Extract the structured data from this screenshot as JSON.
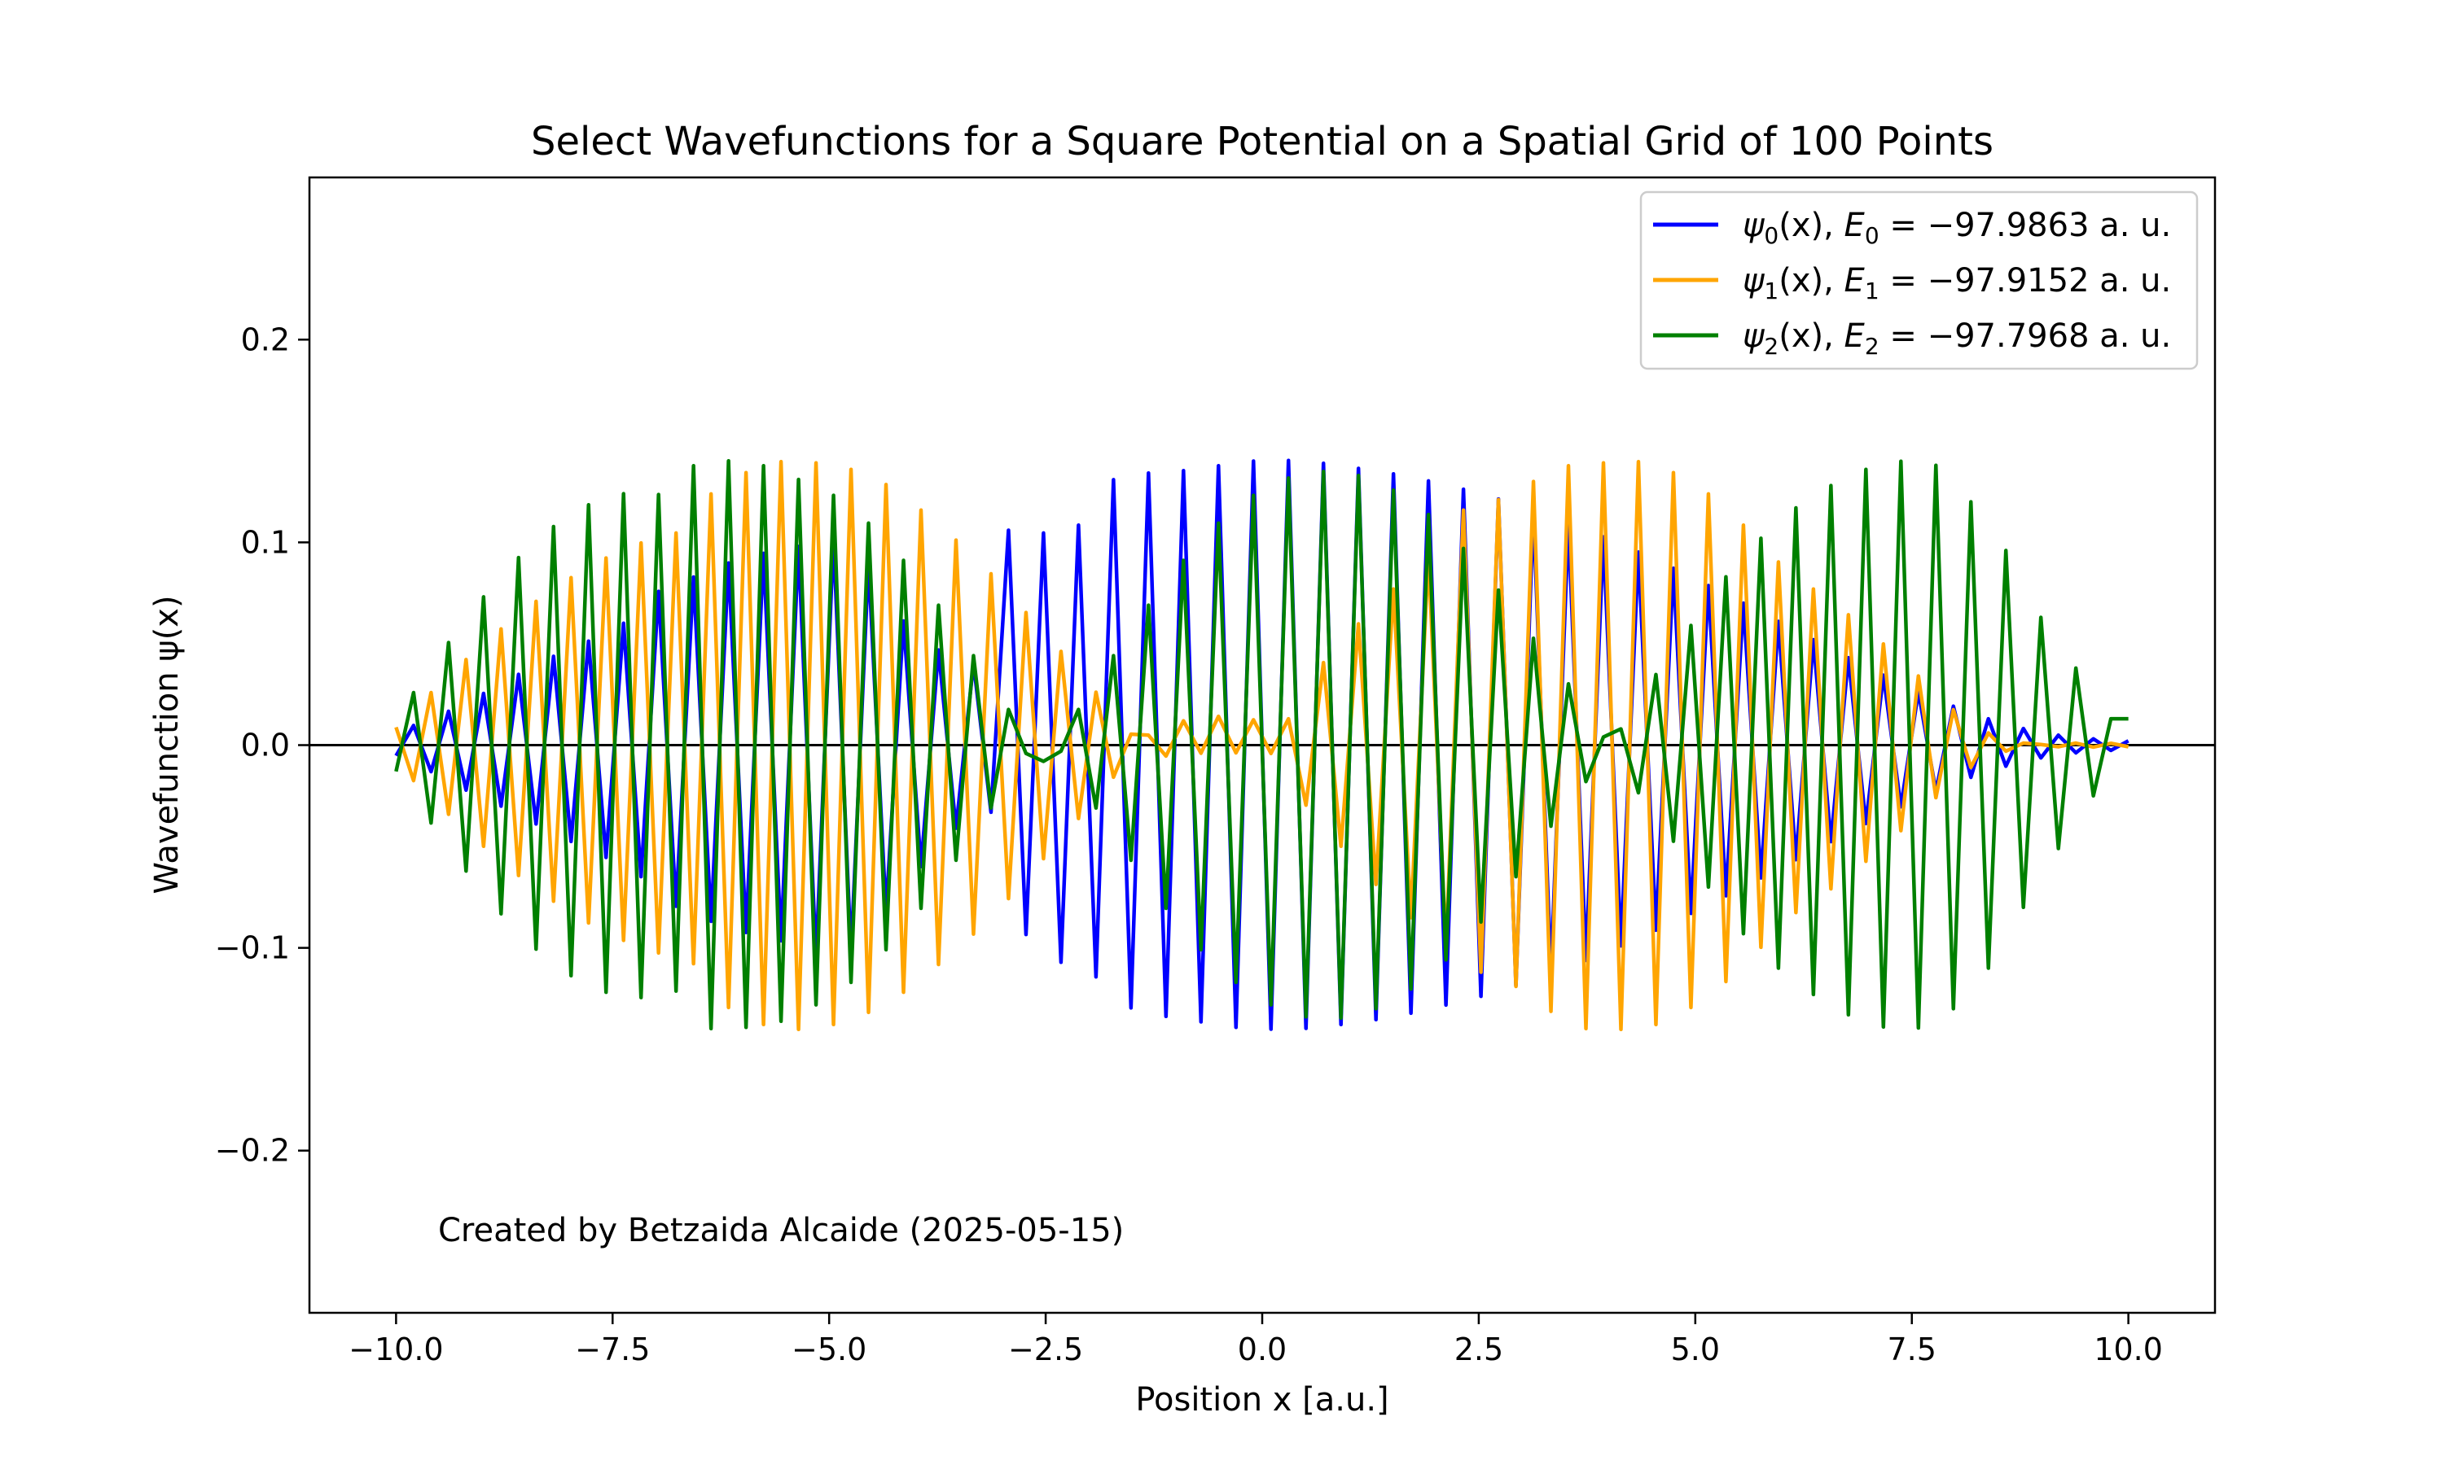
{
  "chart_data": {
    "type": "line",
    "title": "Select Wavefunctions for a Square Potential on a Spatial Grid of 100 Points",
    "xlabel": "Position x [a.u.]",
    "ylabel": "Wavefunction ψ(x)",
    "xlim": [
      -11.0,
      11.0
    ],
    "ylim": [
      -0.28,
      0.28
    ],
    "x_ticks": [
      -10.0,
      -7.5,
      -5.0,
      -2.5,
      0.0,
      2.5,
      5.0,
      7.5,
      10.0
    ],
    "x_tick_labels": [
      "−10.0",
      "−7.5",
      "−5.0",
      "−2.5",
      "0.0",
      "2.5",
      "5.0",
      "7.5",
      "10.0"
    ],
    "y_ticks": [
      -0.2,
      -0.1,
      0.0,
      0.1,
      0.2
    ],
    "y_tick_labels": [
      "−0.2",
      "−0.1",
      "0.0",
      "0.1",
      "0.2"
    ],
    "grid": false,
    "legend_position": "top-right",
    "annotation": "Created by Betzaida Alcaide (2025-05-15)",
    "x_range": [
      -10.0,
      10.0
    ],
    "n_points": 100,
    "series": [
      {
        "label": {
          "psi": "ψ",
          "sub": "0",
          "rest": "(x), ",
          "E": "E",
          "eq": " = −97.9863 a. u."
        },
        "color": "#0000ff",
        "values": [
          -0.0052,
          0.0097,
          -0.0131,
          0.0167,
          -0.0222,
          0.0255,
          -0.0301,
          0.0349,
          -0.0389,
          0.0438,
          -0.0475,
          0.0513,
          -0.0554,
          0.0601,
          -0.0649,
          0.0758,
          -0.0795,
          0.0829,
          -0.0869,
          0.0898,
          -0.0924,
          0.0946,
          -0.0965,
          0.098,
          -0.1054,
          0.1022,
          -0.1031,
          0.0901,
          -0.0823,
          0.0612,
          -0.0599,
          0.0469,
          -0.041,
          0.0405,
          -0.0331,
          0.106,
          -0.0934,
          0.1046,
          -0.1071,
          0.1085,
          -0.1143,
          0.1309,
          -0.1296,
          0.1342,
          -0.1338,
          0.1354,
          -0.1365,
          0.1378,
          -0.1392,
          0.1401,
          -0.1401,
          0.1404,
          -0.1397,
          0.139,
          -0.1378,
          0.1365,
          -0.1354,
          0.1338,
          -0.1322,
          0.1303,
          -0.1282,
          0.1262,
          -0.1239,
          0.1214,
          -0.1186,
          0.1158,
          -0.1128,
          0.1096,
          -0.1062,
          0.1027,
          -0.099,
          0.0952,
          -0.0913,
          0.0872,
          -0.083,
          0.0787,
          -0.0743,
          0.07,
          -0.0655,
          0.061,
          -0.0565,
          0.052,
          -0.0476,
          0.0431,
          -0.0387,
          0.0345,
          -0.0304,
          0.0264,
          -0.0227,
          0.0192,
          -0.0159,
          0.013,
          -0.0104,
          0.0082,
          -0.0063,
          0.0049,
          -0.0038,
          0.0031,
          -0.0026,
          0.0021
        ]
      },
      {
        "label": {
          "psi": "ψ",
          "sub": "1",
          "rest": "(x), ",
          "E": "E",
          "eq": " = −97.9152 a. u."
        },
        "color": "#ffa500",
        "values": [
          0.0088,
          -0.0175,
          0.0259,
          -0.0341,
          0.0422,
          -0.0499,
          0.0573,
          -0.0643,
          0.0709,
          -0.077,
          0.0826,
          -0.0877,
          0.0923,
          -0.0963,
          0.0997,
          -0.1025,
          0.1046,
          -0.1078,
          0.1239,
          -0.1294,
          0.1344,
          -0.1378,
          0.1398,
          -0.1402,
          0.1392,
          -0.1378,
          0.136,
          -0.1318,
          0.1285,
          -0.1219,
          0.1159,
          -0.1082,
          0.1011,
          -0.0932,
          0.0845,
          -0.0757,
          0.0654,
          -0.056,
          0.0462,
          -0.0362,
          0.0261,
          -0.0158,
          0.0054,
          0.0049,
          -0.0054,
          0.012,
          -0.004,
          0.0142,
          -0.0038,
          0.0125,
          -0.0041,
          0.013,
          -0.0296,
          0.0407,
          -0.0499,
          0.0598,
          -0.0687,
          0.077,
          -0.0851,
          0.0937,
          -0.1001,
          0.1159,
          -0.112,
          0.1211,
          -0.119,
          0.13,
          -0.1313,
          0.1378,
          -0.1398,
          0.1392,
          -0.1402,
          0.1398,
          -0.1378,
          0.1344,
          -0.1294,
          0.1239,
          -0.1166,
          0.1085,
          -0.0997,
          0.0903,
          -0.0826,
          0.077,
          -0.0709,
          0.0643,
          -0.0573,
          0.0499,
          -0.0422,
          0.0341,
          -0.0259,
          0.0175,
          -0.011,
          0.006,
          -0.003,
          0.001,
          0.0003,
          -0.0008,
          0.001,
          -0.001,
          0.0009,
          -0.0008
        ]
      },
      {
        "label": {
          "psi": "ψ",
          "sub": "2",
          "rest": "(x), ",
          "E": "E",
          "eq": " = −97.7968 a. u."
        },
        "color": "#008000",
        "values": [
          -0.013,
          0.0259,
          -0.0384,
          0.0506,
          -0.0621,
          0.0731,
          -0.0832,
          0.0925,
          -0.1006,
          0.1078,
          -0.1137,
          0.1185,
          -0.1219,
          0.124,
          -0.1245,
          0.1236,
          -0.1213,
          0.1378,
          -0.1398,
          0.1402,
          -0.1392,
          0.1378,
          -0.1362,
          0.131,
          -0.1281,
          0.1232,
          -0.117,
          0.1095,
          -0.1009,
          0.0911,
          -0.0805,
          0.069,
          -0.0568,
          0.0441,
          -0.031,
          0.0176,
          -0.0041,
          -0.008,
          -0.003,
          0.0176,
          -0.031,
          0.0441,
          -0.0568,
          0.069,
          -0.0805,
          0.0911,
          -0.1009,
          0.1095,
          -0.117,
          0.1232,
          -0.1281,
          0.1317,
          -0.134,
          0.135,
          -0.1346,
          0.133,
          -0.13,
          0.1258,
          -0.1203,
          0.1137,
          -0.1059,
          0.097,
          -0.0872,
          0.0764,
          -0.0649,
          0.0527,
          -0.04,
          0.0302,
          -0.018,
          0.004,
          0.008,
          -0.0235,
          0.0348,
          -0.0474,
          0.059,
          -0.07,
          0.083,
          -0.093,
          0.102,
          -0.11,
          0.117,
          -0.123,
          0.128,
          -0.133,
          0.136,
          -0.139,
          0.14,
          -0.1395,
          0.138,
          -0.13,
          0.12,
          -0.11,
          0.096,
          -0.08,
          0.063,
          -0.051,
          0.038,
          -0.025,
          0.013,
          0.013
        ]
      }
    ]
  }
}
